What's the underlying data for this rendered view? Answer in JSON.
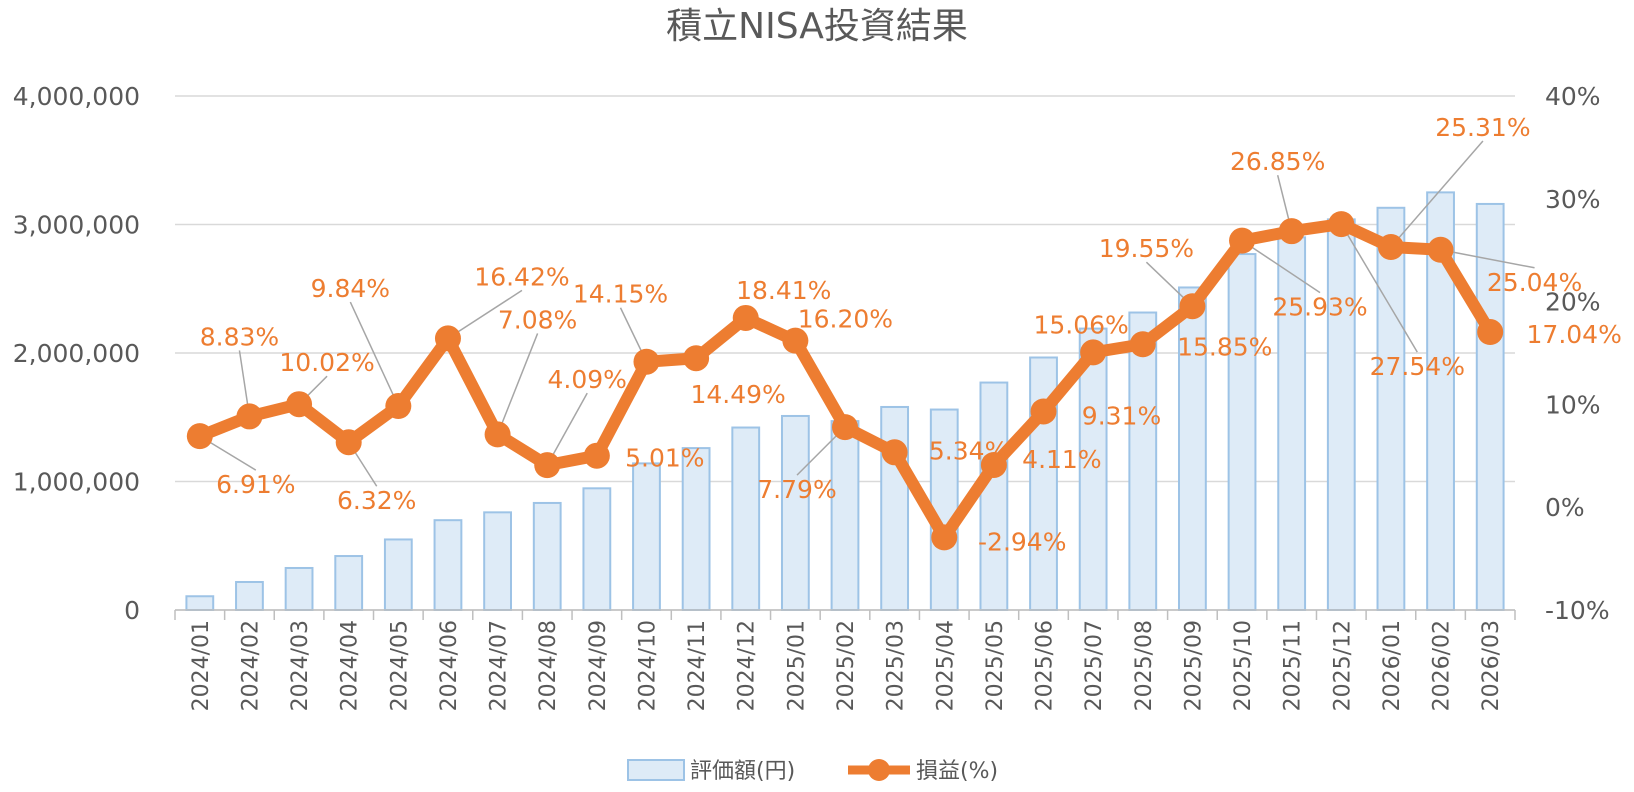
{
  "chart_data": {
    "type": "bar+line",
    "title": "積立NISA投資結果",
    "categories": [
      "2024/01",
      "2024/02",
      "2024/03",
      "2024/04",
      "2024/05",
      "2024/06",
      "2024/07",
      "2024/08",
      "2024/09",
      "2024/10",
      "2024/11",
      "2024/12",
      "2025/01",
      "2025/02",
      "2025/03",
      "2025/04",
      "2025/05",
      "2025/06",
      "2025/07",
      "2025/08",
      "2025/09",
      "2025/10",
      "2025/11",
      "2025/12",
      "2026/01",
      "2026/02",
      "2026/03"
    ],
    "series": [
      {
        "name": "評価額(円)",
        "type": "bar",
        "axis": "left",
        "color": "#DEEBF7",
        "values": [
          107000,
          218000,
          327000,
          420000,
          549000,
          699000,
          760000,
          833000,
          947000,
          1141000,
          1260000,
          1420000,
          1510000,
          1470000,
          1580000,
          1560000,
          1770000,
          1965000,
          2190000,
          2315000,
          2510000,
          2770000,
          2900000,
          3040000,
          3130000,
          3250000,
          3160000
        ]
      },
      {
        "name": "損益(%)",
        "type": "line",
        "axis": "right",
        "color": "#ED7D31",
        "values": [
          6.91,
          8.83,
          10.02,
          6.32,
          9.84,
          16.42,
          7.08,
          4.09,
          5.01,
          14.15,
          14.49,
          18.41,
          16.2,
          7.79,
          5.34,
          -2.94,
          4.11,
          9.31,
          15.06,
          15.85,
          19.55,
          25.93,
          26.85,
          27.54,
          25.31,
          25.04,
          17.04
        ],
        "labels": [
          "6.91%",
          "8.83%",
          "10.02%",
          "6.32%",
          "9.84%",
          "16.42%",
          "7.08%",
          "4.09%",
          "5.01%",
          "14.15%",
          "14.49%",
          "18.41%",
          "16.20%",
          "7.79%",
          "5.34%",
          "-2.94%",
          "4.11%",
          "9.31%",
          "15.06%",
          "15.85%",
          "19.55%",
          "25.93%",
          "26.85%",
          "27.54%",
          "25.31%",
          "25.04%",
          "17.04%"
        ]
      }
    ],
    "y_left": {
      "min": 0,
      "max": 4000000,
      "ticks": [
        "0",
        "1,000,000",
        "2,000,000",
        "3,000,000",
        "4,000,000"
      ]
    },
    "y_right": {
      "min": -10,
      "max": 40,
      "ticks": [
        "-10%",
        "0%",
        "10%",
        "20%",
        "30%",
        "40%"
      ]
    },
    "grid": true,
    "legend": "bottom-center"
  }
}
